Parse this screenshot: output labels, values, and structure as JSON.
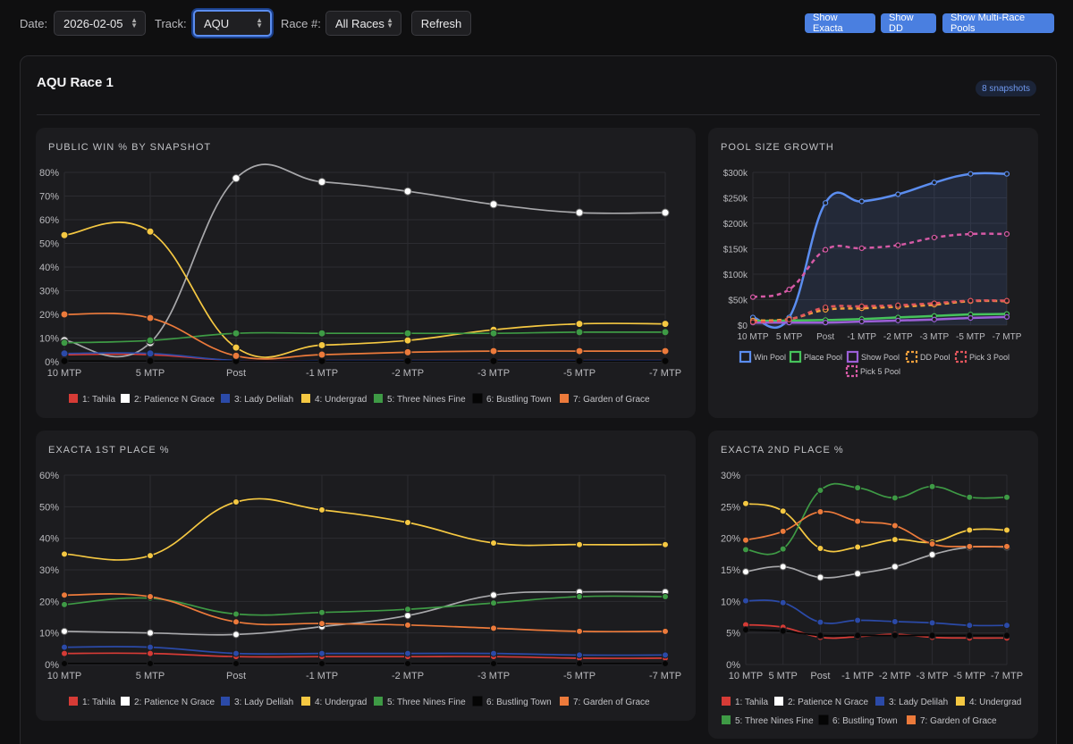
{
  "toolbar": {
    "date_label": "Date:",
    "date_value": "2026-02-05",
    "track_label": "Track:",
    "track_value": "AQU",
    "race_label": "Race #:",
    "race_value": "All Races",
    "refresh_label": "Refresh",
    "show_exacta_label": "Show Exacta",
    "show_dd_label": "Show DD",
    "show_multi_label": "Show Multi-Race Pools"
  },
  "race": {
    "title": "AQU Race 1",
    "snapshots_badge": "8 snapshots"
  },
  "colors": {
    "accent": "#4a7fe0",
    "runners": [
      "#d63b36",
      "#ffffff",
      "#2b4aa8",
      "#f5c842",
      "#3e9a45",
      "#050505",
      "#ec7a3b"
    ],
    "pools": [
      "#5b8def",
      "#46c35b",
      "#9b5fd6",
      "#f2a03c",
      "#e0555c",
      "#d65aa6"
    ]
  },
  "chart_data": [
    {
      "type": "line",
      "title": "PUBLIC WIN % BY SNAPSHOT",
      "categories": [
        "10 MTP",
        "5 MTP",
        "Post",
        "-1 MTP",
        "-2 MTP",
        "-3 MTP",
        "-5 MTP",
        "-7 MTP"
      ],
      "y_ticks": [
        "0%",
        "10%",
        "20%",
        "30%",
        "40%",
        "50%",
        "60%",
        "70%",
        "80%"
      ],
      "ylim": [
        0,
        80
      ],
      "series": [
        {
          "name": "1: Tahila",
          "values": [
            3,
            3,
            0.5,
            0.5,
            0.5,
            0.5,
            0.5,
            0.5
          ]
        },
        {
          "name": "2: Patience N Grace",
          "values": [
            9,
            8,
            77.5,
            76,
            72,
            66.5,
            63,
            63
          ]
        },
        {
          "name": "3: Lady Delilah",
          "values": [
            3.5,
            3.5,
            0.5,
            0.5,
            0.5,
            0.5,
            0.5,
            0.5
          ]
        },
        {
          "name": "4: Undergrad",
          "values": [
            53.5,
            55,
            6,
            7,
            9,
            13.5,
            16,
            16
          ]
        },
        {
          "name": "5: Three Nines Fine",
          "values": [
            8,
            9,
            12,
            12,
            12,
            12,
            12.5,
            12.5
          ]
        },
        {
          "name": "6: Bustling Town",
          "values": [
            0.3,
            0.3,
            0.3,
            0.3,
            0.3,
            0.3,
            0.3,
            0.3
          ]
        },
        {
          "name": "7: Garden of Grace",
          "values": [
            20,
            18.5,
            2.5,
            3,
            4,
            4.5,
            4.5,
            4.5
          ]
        }
      ]
    },
    {
      "type": "area",
      "title": "POOL SIZE GROWTH",
      "categories": [
        "10 MTP",
        "5 MTP",
        "Post",
        "-1 MTP",
        "-2 MTP",
        "-3 MTP",
        "-5 MTP",
        "-7 MTP"
      ],
      "y_ticks": [
        "$0",
        "$50k",
        "$100k",
        "$150k",
        "$200k",
        "$250k",
        "$300k"
      ],
      "ylim": [
        0,
        300000
      ],
      "series": [
        {
          "name": "Win Pool",
          "values": [
            15000,
            15000,
            240000,
            243000,
            257000,
            280000,
            297000,
            297000
          ]
        },
        {
          "name": "Place Pool",
          "values": [
            8000,
            9000,
            10000,
            12000,
            15000,
            18000,
            21000,
            22000
          ]
        },
        {
          "name": "Show Pool",
          "values": [
            5000,
            5000,
            5000,
            7000,
            9000,
            11000,
            14000,
            16000
          ]
        },
        {
          "name": "DD Pool",
          "values": [
            9000,
            12000,
            30000,
            33000,
            36000,
            40000,
            47000,
            47000
          ]
        },
        {
          "name": "Pick 3 Pool",
          "values": [
            6000,
            11000,
            35000,
            37000,
            39000,
            43000,
            48000,
            48000
          ]
        },
        {
          "name": "Pick 5 Pool",
          "values": [
            55000,
            70000,
            148000,
            151000,
            157000,
            172000,
            179000,
            179000
          ]
        }
      ]
    },
    {
      "type": "line",
      "title": "EXACTA 1ST PLACE %",
      "categories": [
        "10 MTP",
        "5 MTP",
        "Post",
        "-1 MTP",
        "-2 MTP",
        "-3 MTP",
        "-5 MTP",
        "-7 MTP"
      ],
      "y_ticks": [
        "0%",
        "10%",
        "20%",
        "30%",
        "40%",
        "50%",
        "60%"
      ],
      "ylim": [
        0,
        60
      ],
      "series": [
        {
          "name": "1: Tahila",
          "values": [
            3.5,
            3.5,
            2.5,
            2.5,
            2.5,
            2.5,
            2,
            2
          ]
        },
        {
          "name": "2: Patience N Grace",
          "values": [
            10.5,
            10,
            9.5,
            12,
            15.5,
            22,
            23,
            23
          ]
        },
        {
          "name": "3: Lady Delilah",
          "values": [
            5.5,
            5.5,
            3.5,
            3.5,
            3.5,
            3.5,
            3,
            3
          ]
        },
        {
          "name": "4: Undergrad",
          "values": [
            35,
            34.5,
            51.5,
            49,
            45,
            38.5,
            38,
            38
          ]
        },
        {
          "name": "5: Three Nines Fine",
          "values": [
            19,
            21,
            16,
            16.5,
            17.5,
            19.5,
            21.5,
            21.5
          ]
        },
        {
          "name": "6: Bustling Town",
          "values": [
            0.3,
            0.3,
            0.3,
            0.3,
            0.3,
            0.3,
            0.3,
            0.3
          ]
        },
        {
          "name": "7: Garden of Grace",
          "values": [
            22,
            21.5,
            13.5,
            13,
            12.5,
            11.5,
            10.5,
            10.5
          ]
        }
      ]
    },
    {
      "type": "line",
      "title": "EXACTA 2ND PLACE %",
      "categories": [
        "10 MTP",
        "5 MTP",
        "Post",
        "-1 MTP",
        "-2 MTP",
        "-3 MTP",
        "-5 MTP",
        "-7 MTP"
      ],
      "y_ticks": [
        "0%",
        "5%",
        "10%",
        "15%",
        "20%",
        "25%",
        "30%"
      ],
      "ylim": [
        0,
        30
      ],
      "series": [
        {
          "name": "1: Tahila",
          "values": [
            6.3,
            5.9,
            4.3,
            4.4,
            4.8,
            4.3,
            4.2,
            4.2
          ]
        },
        {
          "name": "2: Patience N Grace",
          "values": [
            14.7,
            15.5,
            13.8,
            14.4,
            15.5,
            17.4,
            18.6,
            18.6
          ]
        },
        {
          "name": "3: Lady Delilah",
          "values": [
            10.1,
            9.8,
            6.7,
            7,
            6.8,
            6.6,
            6.2,
            6.2
          ]
        },
        {
          "name": "4: Undergrad",
          "values": [
            25.5,
            24.3,
            18.4,
            18.6,
            19.8,
            19.4,
            21.3,
            21.3
          ]
        },
        {
          "name": "5: Three Nines Fine",
          "values": [
            18.2,
            18.3,
            27.6,
            28,
            26.4,
            28.2,
            26.5,
            26.5
          ]
        },
        {
          "name": "6: Bustling Town",
          "values": [
            5.5,
            5.3,
            4.6,
            4.6,
            4.6,
            4.6,
            4.6,
            4.6
          ]
        },
        {
          "name": "7: Garden of Grace",
          "values": [
            19.7,
            21.1,
            24.2,
            22.7,
            22,
            19.1,
            18.7,
            18.7
          ]
        }
      ]
    }
  ]
}
